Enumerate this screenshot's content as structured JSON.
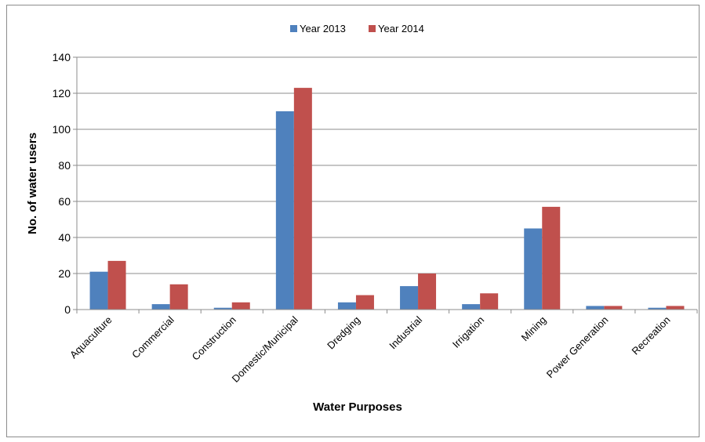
{
  "chart_data": {
    "type": "bar",
    "title": "",
    "xlabel": "Water Purposes",
    "ylabel": "No. of water users",
    "ylim": [
      0,
      140
    ],
    "yticks": [
      0,
      20,
      40,
      60,
      80,
      100,
      120,
      140
    ],
    "grid": true,
    "legend_position": "top",
    "categories": [
      "Aquaculture",
      "Commercial",
      "Construction",
      "Domestic/Municipal",
      "Dredging",
      "Industrial",
      "Irrigation",
      "Mining",
      "Power Generation",
      "Recreation"
    ],
    "series": [
      {
        "name": "Year 2013",
        "color": "#4f81bd",
        "values": [
          21,
          3,
          1,
          110,
          4,
          13,
          3,
          45,
          2,
          1
        ]
      },
      {
        "name": "Year 2014",
        "color": "#c0504d",
        "values": [
          27,
          14,
          4,
          123,
          8,
          20,
          9,
          57,
          2,
          2
        ]
      }
    ]
  }
}
